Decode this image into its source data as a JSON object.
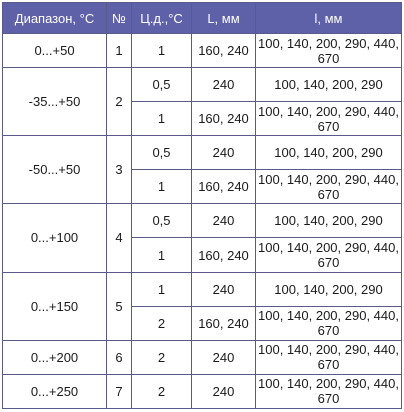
{
  "table": {
    "headers": [
      "Диапазон, °С",
      "№",
      "Ц.д.,°С",
      "L, мм",
      "l, мм"
    ],
    "groups": [
      {
        "range": "0...+50",
        "num": "1",
        "rows": [
          {
            "cd": "1",
            "L": "160, 240",
            "l": "100, 140, 200, 290, 440, 670"
          }
        ]
      },
      {
        "range": "-35...+50",
        "num": "2",
        "rows": [
          {
            "cd": "0,5",
            "L": "240",
            "l": "100, 140, 200, 290"
          },
          {
            "cd": "1",
            "L": "160, 240",
            "l": "100, 140, 200, 290, 440, 670"
          }
        ]
      },
      {
        "range": "-50...+50",
        "num": "3",
        "rows": [
          {
            "cd": "0,5",
            "L": "240",
            "l": "100, 140, 200, 290"
          },
          {
            "cd": "1",
            "L": "160, 240",
            "l": "100, 140, 200, 290, 440, 670"
          }
        ]
      },
      {
        "range": "0...+100",
        "num": "4",
        "rows": [
          {
            "cd": "0,5",
            "L": "240",
            "l": "100, 140, 200, 290"
          },
          {
            "cd": "1",
            "L": "160, 240",
            "l": "100, 140, 200, 290, 440, 670"
          }
        ]
      },
      {
        "range": "0...+150",
        "num": "5",
        "rows": [
          {
            "cd": "1",
            "L": "240",
            "l": "100, 140, 200, 290"
          },
          {
            "cd": "2",
            "L": "160, 240",
            "l": "100, 140, 200, 290, 440, 670"
          }
        ]
      },
      {
        "range": "0...+200",
        "num": "6",
        "rows": [
          {
            "cd": "2",
            "L": "240",
            "l": "100, 140, 200, 290, 440, 670"
          }
        ]
      },
      {
        "range": "0...+250",
        "num": "7",
        "rows": [
          {
            "cd": "2",
            "L": "240",
            "l": "100, 140, 200, 290, 440, 670"
          }
        ]
      }
    ]
  }
}
